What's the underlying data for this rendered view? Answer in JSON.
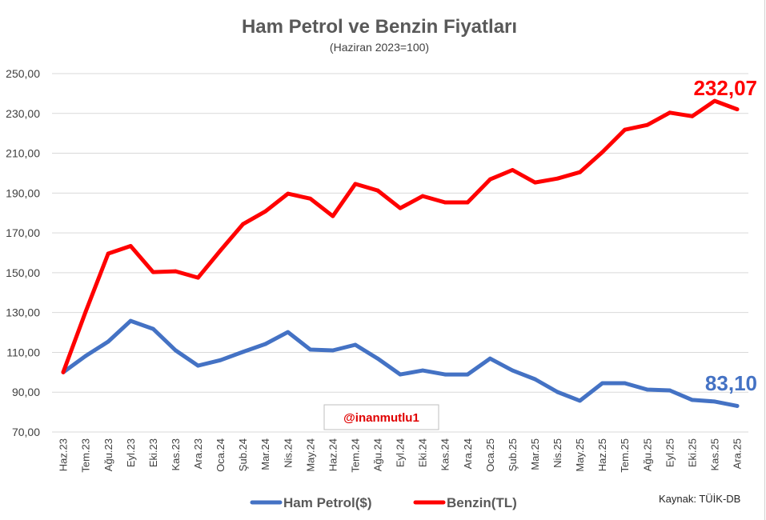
{
  "chart_data": {
    "type": "line",
    "title": "Ham Petrol ve Benzin Fiyatları",
    "subtitle": "(Haziran 2023=100)",
    "categories": [
      "Haz.23",
      "Tem.23",
      "Ağu.23",
      "Eyl.23",
      "Eki.23",
      "Kas.23",
      "Ara.23",
      "Oca.24",
      "Şub.24",
      "Mar.24",
      "Nis.24",
      "May.24",
      "Haz.24",
      "Tem.24",
      "Ağu.24",
      "Eyl.24",
      "Eki.24",
      "Kas.24",
      "Ara.24",
      "Oca.25",
      "Şub.25",
      "Mar.25",
      "Nis.25",
      "May.25",
      "Haz.25",
      "Tem.25",
      "Ağu.25",
      "Eyl.25",
      "Eki.25",
      "Kas.25",
      "Ara.25"
    ],
    "ylim": [
      70,
      250
    ],
    "yticks": [
      {
        "value": 250,
        "label": "250,00"
      },
      {
        "value": 230,
        "label": "230,00"
      },
      {
        "value": 210,
        "label": "210,00"
      },
      {
        "value": 190,
        "label": "190,00"
      },
      {
        "value": 170,
        "label": "170,00"
      },
      {
        "value": 150,
        "label": "150,00"
      },
      {
        "value": 130,
        "label": "130,00"
      },
      {
        "value": 110,
        "label": "110,00"
      },
      {
        "value": 90,
        "label": "90,00"
      },
      {
        "value": 70,
        "label": "70,00"
      }
    ],
    "series": [
      {
        "name": "Ham Petrol($)",
        "color": "#4472C4",
        "values": [
          100,
          108.2,
          115.4,
          125.8,
          121.8,
          111.0,
          103.3,
          106.1,
          110.2,
          114.2,
          120.2,
          111.4,
          111.0,
          113.8,
          106.9,
          98.9,
          100.9,
          98.9,
          98.9,
          106.9,
          100.9,
          96.5,
          90.1,
          85.7,
          94.5,
          94.5,
          91.3,
          90.9,
          86.1,
          85.3,
          83.1
        ],
        "end_label": "83,10"
      },
      {
        "name": "Benzin(TL)",
        "color": "#FF0000",
        "values": [
          100,
          130.5,
          159.6,
          163.4,
          150.3,
          150.7,
          147.5,
          161.2,
          174.4,
          180.8,
          189.7,
          187.2,
          178.4,
          194.6,
          191.3,
          182.4,
          188.5,
          185.3,
          185.3,
          196.9,
          201.6,
          195.3,
          197.3,
          200.5,
          210.6,
          221.8,
          224.2,
          230.4,
          228.6,
          236.3,
          232.07
        ],
        "end_label": "232,07"
      }
    ],
    "grid": true,
    "legend": "bottom",
    "source": "Kaynak: TÜİK-DB",
    "watermark": "@inanmutlu1"
  }
}
